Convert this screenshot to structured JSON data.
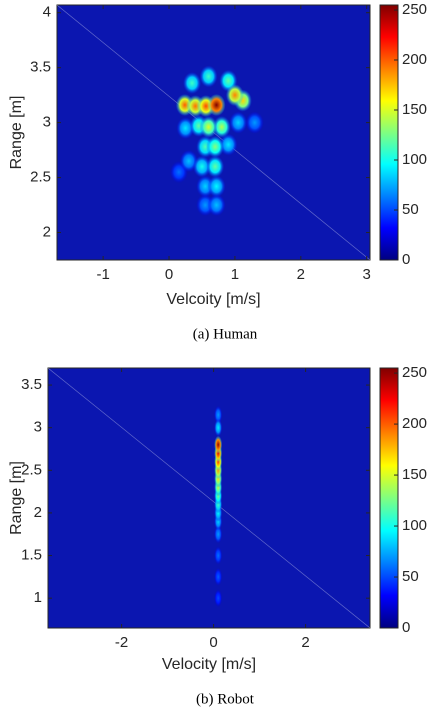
{
  "chart_data": [
    {
      "type": "heatmap",
      "x_label": "Velcoity [m/s]",
      "y_label": "Range [m]",
      "caption": "(a)  Human",
      "xlim": [
        -1.7,
        3.05
      ],
      "ylim": [
        1.75,
        4.07
      ],
      "xticks": [
        -1,
        0,
        1,
        2,
        3
      ],
      "yticks": [
        2,
        2.5,
        3,
        3.5,
        4
      ],
      "clim": [
        0,
        255
      ],
      "cticks": [
        0,
        50,
        100,
        150,
        200,
        250
      ],
      "colormap": "jet",
      "x": [
        0.72,
        0.56,
        0.4,
        0.24,
        1.0,
        1.12,
        0.9,
        0.35,
        0.6,
        0.8,
        0.45,
        0.7,
        0.25,
        0.55,
        0.7,
        0.5,
        0.72,
        0.55,
        0.72,
        0.55,
        0.9,
        0.3,
        0.6,
        1.05,
        0.15,
        1.3
      ],
      "y": [
        3.16,
        3.15,
        3.15,
        3.16,
        3.25,
        3.2,
        3.38,
        3.36,
        2.96,
        2.96,
        2.97,
        2.78,
        2.95,
        2.78,
        2.6,
        2.6,
        2.42,
        2.42,
        2.25,
        2.25,
        2.8,
        2.65,
        3.42,
        3.0,
        2.55,
        3.0
      ],
      "values": [
        255,
        205,
        195,
        200,
        190,
        170,
        120,
        110,
        150,
        140,
        120,
        130,
        90,
        115,
        120,
        100,
        95,
        85,
        80,
        70,
        90,
        80,
        110,
        85,
        60,
        70
      ]
    },
    {
      "type": "heatmap",
      "x_label": "Velocity [m/s]",
      "y_label": "Range [m]",
      "caption": "(b)  Robot",
      "xlim": [
        -3.6,
        3.4
      ],
      "ylim": [
        0.65,
        3.7
      ],
      "xticks": [
        -2,
        0,
        2
      ],
      "yticks": [
        1,
        1.5,
        2,
        2.5,
        3,
        3.5
      ],
      "clim": [
        0,
        255
      ],
      "cticks": [
        0,
        50,
        100,
        150,
        200,
        250
      ],
      "colormap": "jet",
      "x": [
        0.1,
        0.1,
        0.1,
        0.1,
        0.1,
        0.1,
        0.1,
        0.1,
        0.1,
        0.1,
        0.1,
        0.1,
        0.1,
        0.1,
        0.1,
        0.1
      ],
      "y": [
        2.8,
        2.7,
        2.6,
        2.5,
        2.4,
        2.3,
        2.2,
        2.1,
        2.0,
        1.9,
        3.0,
        3.15,
        1.75,
        1.5,
        1.25,
        1.0
      ],
      "values": [
        250,
        230,
        210,
        185,
        165,
        145,
        125,
        110,
        95,
        85,
        90,
        70,
        70,
        60,
        55,
        50
      ]
    }
  ]
}
